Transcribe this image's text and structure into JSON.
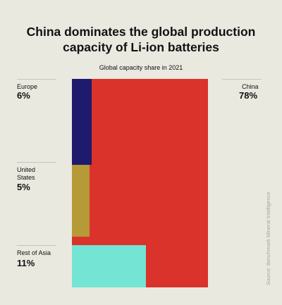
{
  "header": {
    "title_line1": "China dominates the global production",
    "title_line2": "capacity of Li-ion batteries",
    "subtitle": "Global capacity share in 2021"
  },
  "labels": {
    "europe_name": "Europe",
    "europe_value": "6%",
    "us_name_line1": "United",
    "us_name_line2": "States",
    "us_value": "5%",
    "asia_name": "Rest of Asia",
    "asia_value": "11%",
    "china_name": "China",
    "china_value": "78%"
  },
  "source": "Source: Benchmark Mineral Intelligence",
  "chart_data": {
    "type": "treemap",
    "title": "China dominates the global production capacity of Li-ion batteries",
    "subtitle": "Global capacity share in 2021",
    "unit": "%",
    "categories": [
      "Europe",
      "United States",
      "Rest of Asia",
      "China"
    ],
    "values": [
      6,
      5,
      11,
      78
    ],
    "colors": {
      "Europe": "#1e1a6e",
      "United States": "#b59a37",
      "Rest of Asia": "#74e4d4",
      "China": "#d9332b"
    }
  }
}
